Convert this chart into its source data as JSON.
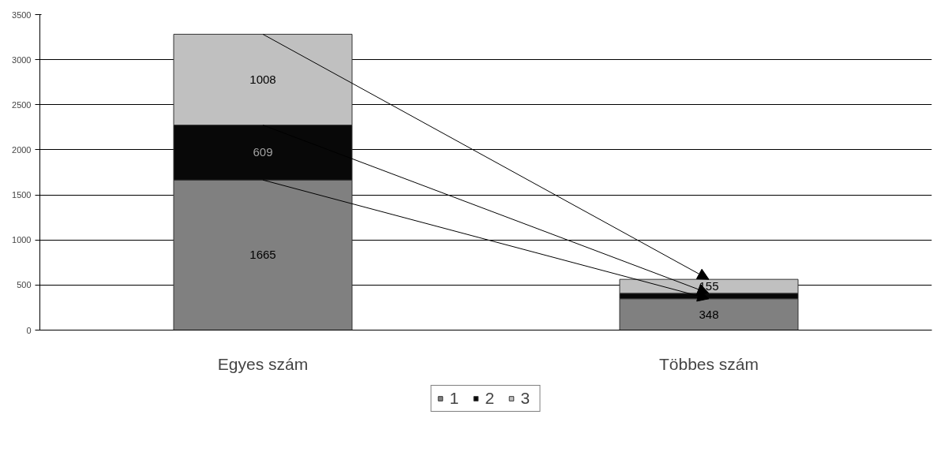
{
  "chart_data": {
    "type": "bar",
    "stacked": true,
    "categories": [
      "Egyes szám",
      "Többes szám"
    ],
    "series": [
      {
        "name": "1",
        "color": "#808080",
        "values": [
          1665,
          348
        ],
        "value_labels": [
          "1665",
          "348"
        ]
      },
      {
        "name": "2",
        "color": "#080808",
        "values": [
          609,
          60
        ],
        "value_labels": [
          "609",
          null
        ]
      },
      {
        "name": "3",
        "color": "#c0c0c0",
        "values": [
          1008,
          155
        ],
        "value_labels": [
          "1008",
          "155"
        ]
      }
    ],
    "ylim": [
      0,
      3500
    ],
    "yticks": [
      0,
      500,
      1000,
      1500,
      2000,
      2500,
      3000,
      3500
    ],
    "grid": "y",
    "legend": "bottom"
  }
}
